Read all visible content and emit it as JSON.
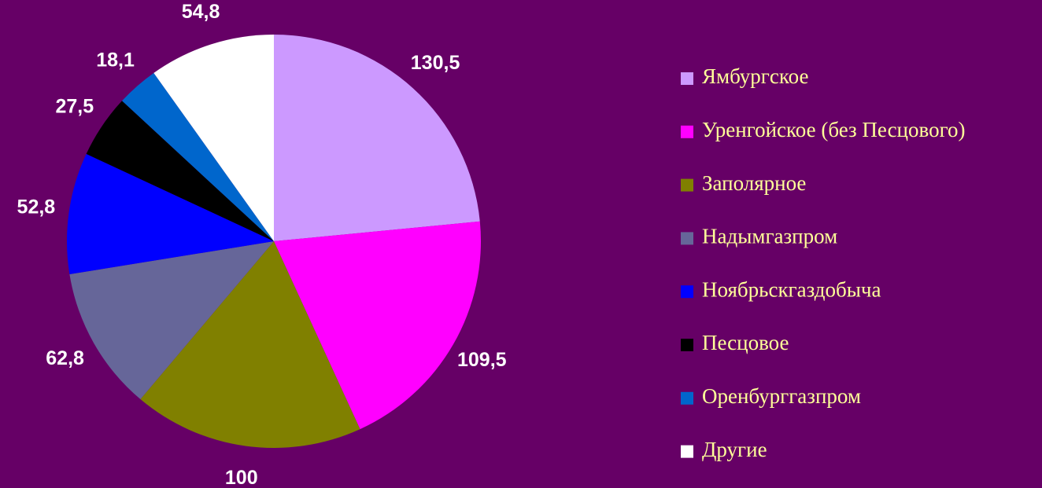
{
  "chart_data": {
    "type": "pie",
    "categories": [
      "Ямбургское",
      "Уренгойское (без Песцового)",
      "Заполярное",
      "Надымгазпром",
      "Ноябрьскгаздобыча",
      "Песцовое",
      "Оренбурггазпром",
      "Другие"
    ],
    "values": [
      130.5,
      109.5,
      100,
      62.8,
      52.8,
      27.5,
      18.1,
      54.8
    ],
    "value_labels": [
      "130,5",
      "109,5",
      "100",
      "62,8",
      "52,8",
      "27,5",
      "18,1",
      "54,8"
    ],
    "colors": [
      "#cc99ff",
      "#ff00ff",
      "#808000",
      "#666699",
      "#0000ff",
      "#000000",
      "#0066cc",
      "#ffffff"
    ],
    "legend": "right"
  }
}
